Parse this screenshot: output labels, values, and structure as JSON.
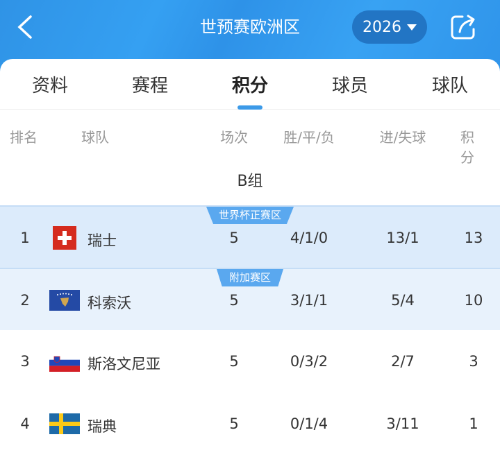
{
  "header": {
    "title": "世预赛欧洲区",
    "year": "2026",
    "back_icon": "chevron-left-icon",
    "share_icon": "share-icon"
  },
  "tabs": [
    {
      "label": "资料"
    },
    {
      "label": "赛程"
    },
    {
      "label": "积分",
      "active": true
    },
    {
      "label": "球员"
    },
    {
      "label": "球队"
    }
  ],
  "columns": {
    "rank": "排名",
    "team": "球队",
    "played": "场次",
    "wdl": "胜/平/负",
    "goals": "进/失球",
    "points": "积分"
  },
  "group": "B组",
  "zones": {
    "qualify": "世界杯正赛区",
    "playoff": "附加赛区"
  },
  "rows": [
    {
      "rank": "1",
      "team": "瑞士",
      "flag": "switzerland",
      "played": "5",
      "wdl": "4/1/0",
      "goals": "13/1",
      "points": "13"
    },
    {
      "rank": "2",
      "team": "科索沃",
      "flag": "kosovo",
      "played": "5",
      "wdl": "3/1/1",
      "goals": "5/4",
      "points": "10"
    },
    {
      "rank": "3",
      "team": "斯洛文尼亚",
      "flag": "slovenia",
      "played": "5",
      "wdl": "0/3/2",
      "goals": "2/7",
      "points": "3"
    },
    {
      "rank": "4",
      "team": "瑞典",
      "flag": "sweden",
      "played": "5",
      "wdl": "0/1/4",
      "goals": "3/11",
      "points": "1"
    }
  ],
  "colors": {
    "header": "#2f96ec",
    "accent": "#3c9ae8",
    "qualify_row": "#dcebfb",
    "playoff_row": "#e8f2fc"
  }
}
